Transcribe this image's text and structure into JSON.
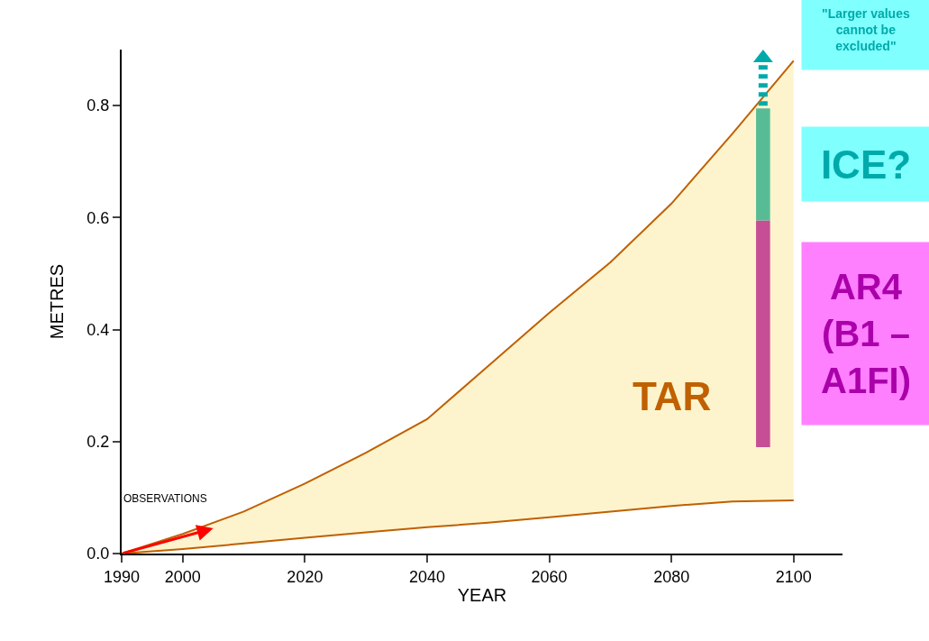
{
  "chart_data": {
    "type": "line",
    "xlabel": "YEAR",
    "ylabel": "METRES",
    "xlim": [
      1990,
      2108
    ],
    "xticks": [
      1990,
      2000,
      2020,
      2040,
      2060,
      2080,
      2100
    ],
    "ylim": [
      0,
      0.9
    ],
    "yticks": [
      {
        "value": 0,
        "label": "0.0"
      },
      {
        "value": 0.2,
        "label": "0.2"
      },
      {
        "value": 0.4,
        "label": "0.4"
      },
      {
        "value": 0.6,
        "label": "0.6"
      },
      {
        "value": 0.8,
        "label": "0.8"
      }
    ],
    "grid": false,
    "legend": false,
    "marker": "none",
    "line_style": "solid",
    "series": [
      {
        "color": "#c06000",
        "x": [
          1990,
          2000,
          2010,
          2020,
          2030,
          2040,
          2050,
          2060,
          2070,
          2080,
          2090,
          2100
        ],
        "values": [
          0,
          0.008,
          0.018,
          0.028,
          0.038,
          0.047,
          0.055,
          0.065,
          0.075,
          0.085,
          0.093,
          0.095
        ]
      },
      {
        "type": "area",
        "name": "TAR",
        "color": "#c06000",
        "x": [
          1990,
          2000,
          2010,
          2020,
          2030,
          2040,
          2050,
          2060,
          2070,
          2080,
          2090,
          2100
        ],
        "values": [
          0,
          0.035,
          0.075,
          0.125,
          0.18,
          0.24,
          0.335,
          0.43,
          0.52,
          0.625,
          0.75,
          0.88
        ]
      },
      {
        "type": "bar",
        "name": "AR4\n(B1 –\nA1FI)",
        "color": "#aa00aa",
        "x": [
          2095
        ],
        "base": [
          0.19
        ],
        "values": [
          0.405
        ]
      },
      {
        "type": "bar",
        "name": "ICE?",
        "color": "#00aaaa",
        "x": [
          2095
        ],
        "base": [
          0.595
        ],
        "values": [
          0.2
        ]
      }
    ],
    "annotations": [
      {
        "text": "OBSERVATIONS",
        "x": 2005,
        "y": 0.045
      },
      "\"Larger values\ncannot be\nexcluded\""
    ]
  }
}
